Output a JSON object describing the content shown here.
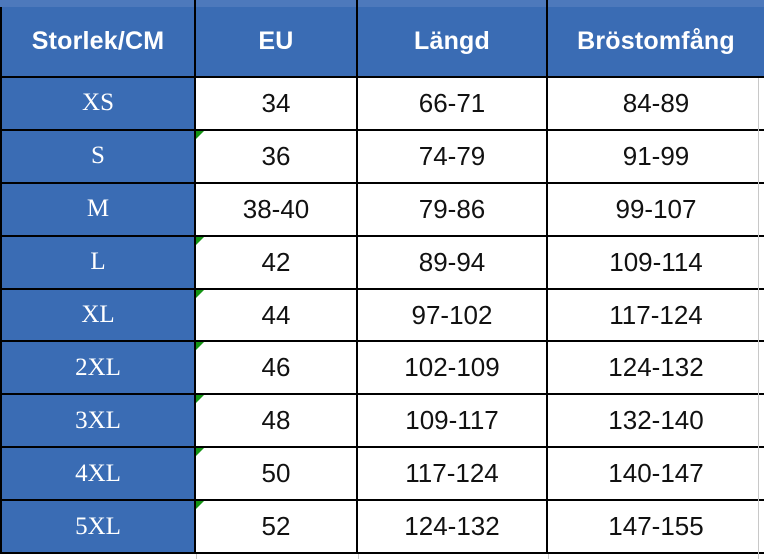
{
  "colors": {
    "accent_blue": "#3a6cb4",
    "sliver_blue": "#4d79bc",
    "border_black": "#000000",
    "marker_green": "#149414",
    "gridline_gray": "#c8c8c8",
    "header_text": "#ffffff",
    "data_text": "#111111"
  },
  "table": {
    "headers": [
      "Storlek/CM",
      "EU",
      "Längd",
      "Bröstomfång"
    ],
    "rows": [
      {
        "size": "XS",
        "eu": "34",
        "langd": "66-71",
        "brost": "84-89",
        "marker": false
      },
      {
        "size": "S",
        "eu": "36",
        "langd": "74-79",
        "brost": "91-99",
        "marker": true
      },
      {
        "size": "M",
        "eu": "38-40",
        "langd": "79-86",
        "brost": "99-107",
        "marker": false
      },
      {
        "size": "L",
        "eu": "42",
        "langd": "89-94",
        "brost": "109-114",
        "marker": true
      },
      {
        "size": "XL",
        "eu": "44",
        "langd": "97-102",
        "brost": "117-124",
        "marker": true
      },
      {
        "size": "2XL",
        "eu": "46",
        "langd": "102-109",
        "brost": "124-132",
        "marker": true
      },
      {
        "size": "3XL",
        "eu": "48",
        "langd": "109-117",
        "brost": "132-140",
        "marker": true
      },
      {
        "size": "4XL",
        "eu": "50",
        "langd": "117-124",
        "brost": "140-147",
        "marker": true
      },
      {
        "size": "5XL",
        "eu": "52",
        "langd": "124-132",
        "brost": "147-155",
        "marker": true
      }
    ]
  },
  "chart_data": {
    "type": "table",
    "columns": [
      "Storlek/CM",
      "EU",
      "Längd",
      "Bröstomfång"
    ],
    "rows": [
      [
        "XS",
        "34",
        "66-71",
        "84-89"
      ],
      [
        "S",
        "36",
        "74-79",
        "91-99"
      ],
      [
        "M",
        "38-40",
        "79-86",
        "99-107"
      ],
      [
        "L",
        "42",
        "89-94",
        "109-114"
      ],
      [
        "XL",
        "44",
        "97-102",
        "117-124"
      ],
      [
        "2XL",
        "46",
        "102-109",
        "124-132"
      ],
      [
        "3XL",
        "48",
        "109-117",
        "132-140"
      ],
      [
        "4XL",
        "50",
        "117-124",
        "140-147"
      ],
      [
        "5XL",
        "52",
        "124-132",
        "147-155"
      ]
    ]
  }
}
